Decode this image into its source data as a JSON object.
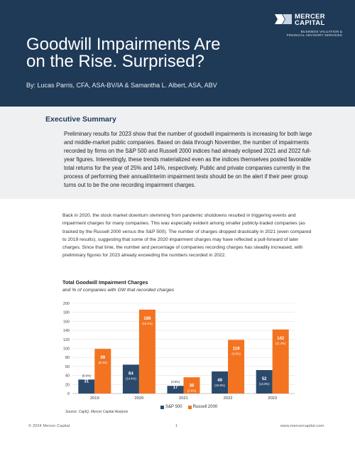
{
  "header": {
    "logo": {
      "name_line1": "MERCER",
      "name_line2": "CAPITAL",
      "tag_line1": "BUSINESS VALUATION &",
      "tag_line2": "FINANCIAL ADVISORY SERVICES"
    },
    "title_line1": "Goodwill Impairments Are",
    "title_line2": "on the Rise. Surprised?",
    "byline": "By: Lucas Parris, CFA, ASA-BV/IA & Samantha L. Albert, ASA, ABV"
  },
  "summary": {
    "heading": "Executive Summary",
    "text": "Preliminary results for 2023 show that the number of goodwill impairments is increasing for both large and middle-market public companies. Based on data through November, the number of impairments recorded by firms on the S&P 500 and Russell 2000 indices had already eclipsed 2021 and 2022 full-year figures. Interestingly, these trends materialized even as the indices themselves posted favorable total returns for the year of 25% and 14%, respectively. Public and private companies currently in the process of performing their annual/interim impairment tests should be on the alert if their peer group turns out to be the one recording impairment charges."
  },
  "body": {
    "text": "Back in 2020, the stock market downturn stemming from pandemic shutdowns resulted in triggering events and impairment charges for many companies. This was especially evident among smaller publicly-traded companies (as tracked by the Russell 2000 versus the S&P 500). The number of charges dropped drastically in 2021 (even compared to 2019 results), suggesting that some of the 2020 impairment charges may have reflected a pull-forward of later charges. Since that time, the number and percentage of companies recording charges has steadily increased, with preliminary figures for 2023 already exceeding the numbers recorded in 2022."
  },
  "chart_data": {
    "type": "bar",
    "title": "Total Goodwill Impairment Charges",
    "subtitle": "and % of companies with GW that recorded charges",
    "categories": [
      "2019",
      "2020",
      "2021",
      "2022",
      "2023"
    ],
    "series": [
      {
        "name": "S&P 500",
        "color": "#2b4a6b",
        "values": [
          31,
          64,
          17,
          49,
          52
        ],
        "pct_labels": [
          "(6.9%)",
          "(14.4%)",
          "(3.8%)",
          "(10.9%)",
          "(12.0%)"
        ]
      },
      {
        "name": "Russell 2000",
        "color": "#f37321",
        "values": [
          99,
          186,
          36,
          119,
          142
        ],
        "pct_labels": [
          "(8.3%)",
          "(15.4%)",
          "(2.8%)",
          "(9.9%)",
          "(11.4%)"
        ]
      }
    ],
    "ylim": [
      0,
      200
    ],
    "yticks": [
      0,
      20,
      40,
      60,
      80,
      100,
      120,
      140,
      160,
      180,
      200
    ],
    "grid": true,
    "legend": "bottom",
    "source": "Source: CapIQ, Mercer Capital Analysis"
  },
  "footer": {
    "copyright": "© 2024 Mercer Capital",
    "page": "1",
    "url": "www.mercercapital.com"
  }
}
